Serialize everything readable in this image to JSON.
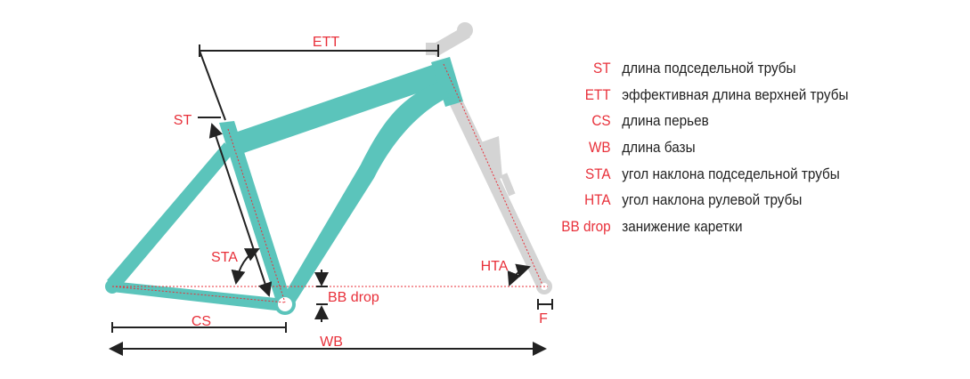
{
  "diagram": {
    "labels": {
      "ett": "ETT",
      "st": "ST",
      "sta": "STA",
      "bb_drop": "BB drop",
      "cs": "CS",
      "wb": "WB",
      "hta": "HTA",
      "f": "F"
    },
    "colors": {
      "frame": "#5bc4bb",
      "fork": "#d4d4d4",
      "accent": "#e8303a",
      "dimension": "#222222"
    }
  },
  "legend": [
    {
      "code": "ST",
      "description": "длина подседельной трубы"
    },
    {
      "code": "ETT",
      "description": "эффективная длина верхней трубы"
    },
    {
      "code": "CS",
      "description": "длина перьев"
    },
    {
      "code": "WB",
      "description": "длина базы"
    },
    {
      "code": "STA",
      "description": "угол наклона подседельной трубы"
    },
    {
      "code": "HTA",
      "description": "угол наклона рулевой трубы"
    },
    {
      "code": "BB drop",
      "description": "занижение каретки"
    }
  ]
}
